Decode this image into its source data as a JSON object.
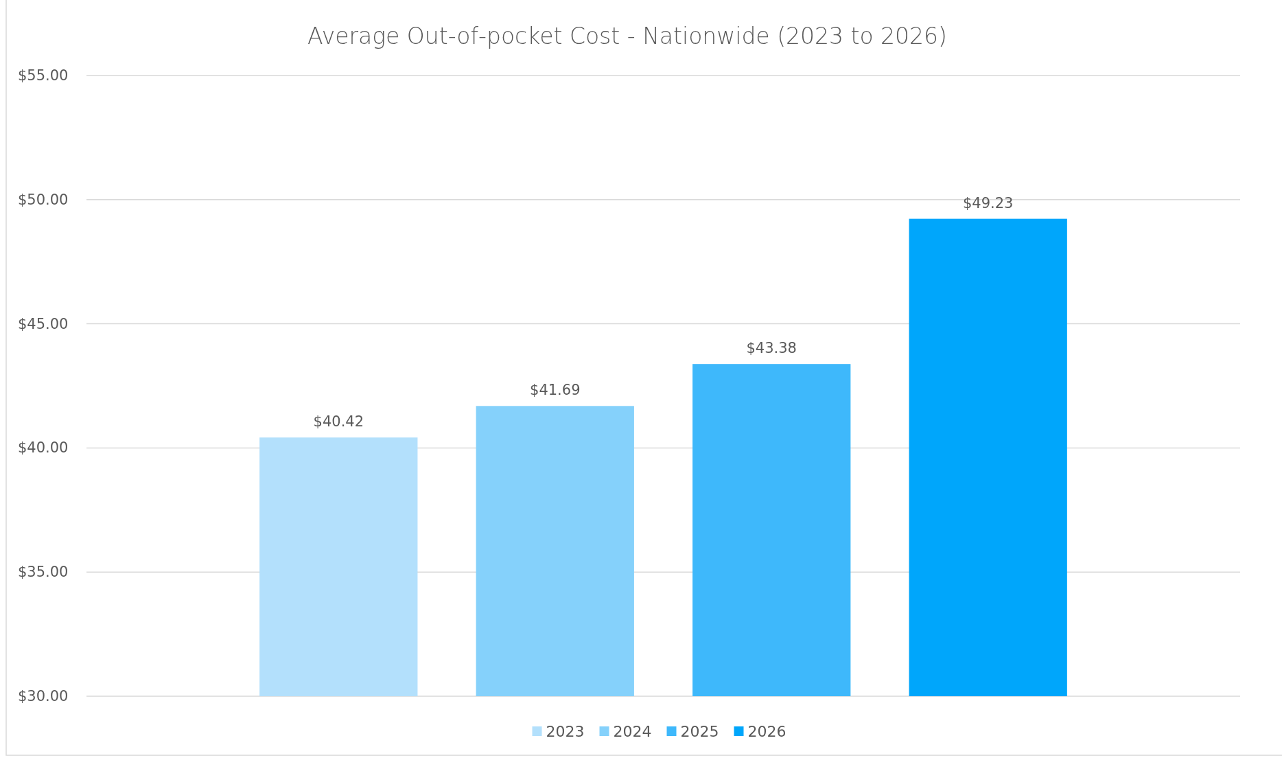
{
  "chart_data": {
    "type": "bar",
    "title": "Average Out-of-pocket Cost - Nationwide (2023 to 2026)",
    "categories": [
      null
    ],
    "series": [
      {
        "name": "2023",
        "color": "#b3e0fc",
        "values": [
          40.42
        ],
        "value_labels": [
          "$40.42"
        ]
      },
      {
        "name": "2024",
        "color": "#85d1fb",
        "values": [
          41.69
        ],
        "value_labels": [
          "$41.69"
        ]
      },
      {
        "name": "2025",
        "color": "#3eb8fb",
        "values": [
          43.38
        ],
        "value_labels": [
          "$43.38"
        ]
      },
      {
        "name": "2026",
        "color": "#00a6fb",
        "values": [
          49.23
        ],
        "value_labels": [
          "$49.23"
        ]
      }
    ],
    "ylim": [
      30,
      55
    ],
    "yticks": [
      {
        "value": 30,
        "label": "$30.00"
      },
      {
        "value": 35,
        "label": "$35.00"
      },
      {
        "value": 40,
        "label": "$40.00"
      },
      {
        "value": 45,
        "label": "$45.00"
      },
      {
        "value": 50,
        "label": "$50.00"
      },
      {
        "value": 55,
        "label": "$55.00"
      }
    ],
    "grid": "y",
    "legend": "bottom"
  }
}
